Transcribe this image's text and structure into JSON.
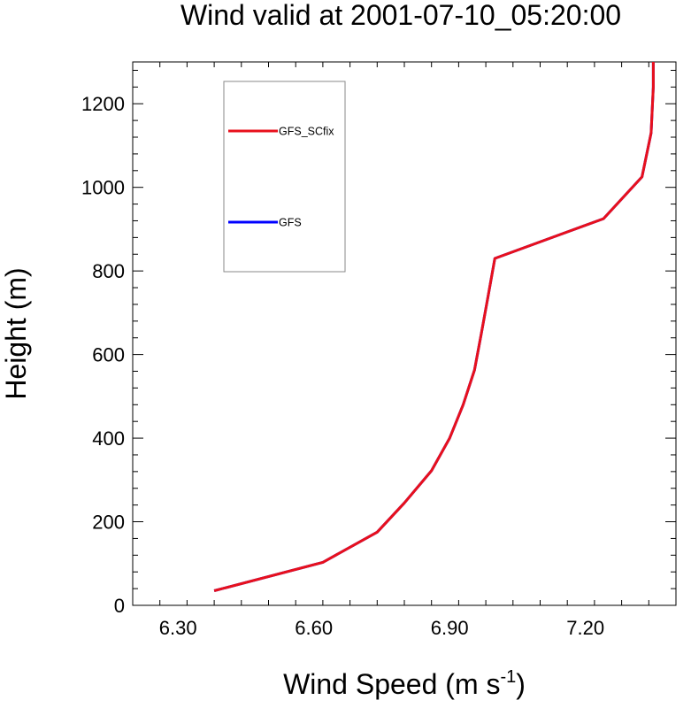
{
  "chart_data": {
    "type": "line",
    "title": "Wind valid at 2001-07-10_05:20:00",
    "xlabel": "Wind Speed (m s",
    "xlabel_superscript": "-1",
    "xlabel_suffix": ")",
    "ylabel": "Height (m)",
    "xlim": [
      6.2,
      7.4
    ],
    "ylim": [
      0,
      1300
    ],
    "x_ticks": [
      6.3,
      6.6,
      6.9,
      7.2
    ],
    "x_tick_labels": [
      "6.30",
      "6.60",
      "6.90",
      "7.20"
    ],
    "y_ticks": [
      0,
      200,
      400,
      600,
      800,
      1000,
      1200
    ],
    "y_tick_labels": [
      "0",
      "200",
      "400",
      "600",
      "800",
      "1000",
      "1200"
    ],
    "grid": false,
    "legend_position": "top-left",
    "series": [
      {
        "name": "GFS",
        "color": "#0000ff",
        "x": [
          6.38,
          6.62,
          6.74,
          6.8,
          6.86,
          6.9,
          6.93,
          6.955,
          6.97,
          6.985,
          7.0,
          7.24,
          7.325,
          7.345,
          7.35,
          7.35
        ],
        "y": [
          35,
          103,
          175,
          245,
          322,
          400,
          480,
          563,
          650,
          740,
          830,
          925,
          1025,
          1130,
          1240,
          1300
        ]
      },
      {
        "name": "GFS_SCfix",
        "color": "#e8101c",
        "x": [
          6.38,
          6.62,
          6.74,
          6.8,
          6.86,
          6.9,
          6.93,
          6.955,
          6.97,
          6.985,
          7.0,
          7.24,
          7.325,
          7.345,
          7.35,
          7.35
        ],
        "y": [
          35,
          103,
          175,
          245,
          322,
          400,
          480,
          563,
          650,
          740,
          830,
          925,
          1025,
          1130,
          1240,
          1300
        ]
      }
    ]
  }
}
